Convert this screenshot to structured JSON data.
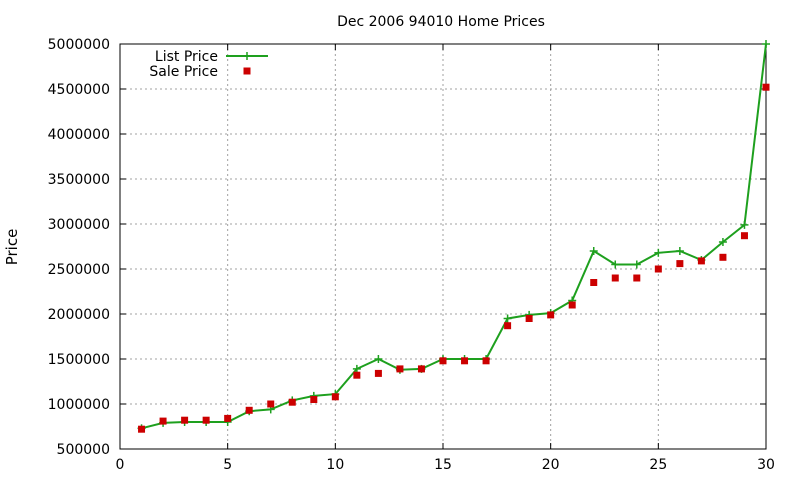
{
  "chart_data": {
    "type": "line",
    "title": "Dec 2006 94010 Home Prices",
    "xlabel": "",
    "ylabel": "Price",
    "xlim": [
      0,
      30
    ],
    "ylim": [
      500000,
      5000000
    ],
    "x_ticks": [
      0,
      5,
      10,
      15,
      20,
      25,
      30
    ],
    "y_ticks": [
      500000,
      1000000,
      1500000,
      2000000,
      2500000,
      3000000,
      3500000,
      4000000,
      4500000,
      5000000
    ],
    "grid": true,
    "legend_position": "top-left",
    "x": [
      1,
      2,
      3,
      4,
      5,
      6,
      7,
      8,
      9,
      10,
      11,
      12,
      13,
      14,
      15,
      16,
      17,
      18,
      19,
      20,
      21,
      22,
      23,
      24,
      25,
      26,
      27,
      28,
      29,
      30
    ],
    "series": [
      {
        "name": "List Price",
        "style": "line-with-plus",
        "color": "#1ea01e",
        "values": [
          730000,
          790000,
          800000,
          800000,
          800000,
          920000,
          940000,
          1040000,
          1090000,
          1110000,
          1390000,
          1500000,
          1380000,
          1390000,
          1500000,
          1500000,
          1500000,
          1950000,
          1990000,
          2010000,
          2150000,
          2700000,
          2550000,
          2550000,
          2680000,
          2700000,
          2600000,
          2800000,
          2990000,
          5000000
        ]
      },
      {
        "name": "Sale Price",
        "style": "square-markers",
        "color": "#cc0000",
        "values": [
          720000,
          810000,
          820000,
          820000,
          840000,
          930000,
          1000000,
          1020000,
          1050000,
          1080000,
          1320000,
          1340000,
          1390000,
          1390000,
          1480000,
          1480000,
          1480000,
          1870000,
          1950000,
          1990000,
          2100000,
          2350000,
          2400000,
          2400000,
          2500000,
          2560000,
          2590000,
          2630000,
          2870000,
          4520000
        ]
      }
    ]
  }
}
